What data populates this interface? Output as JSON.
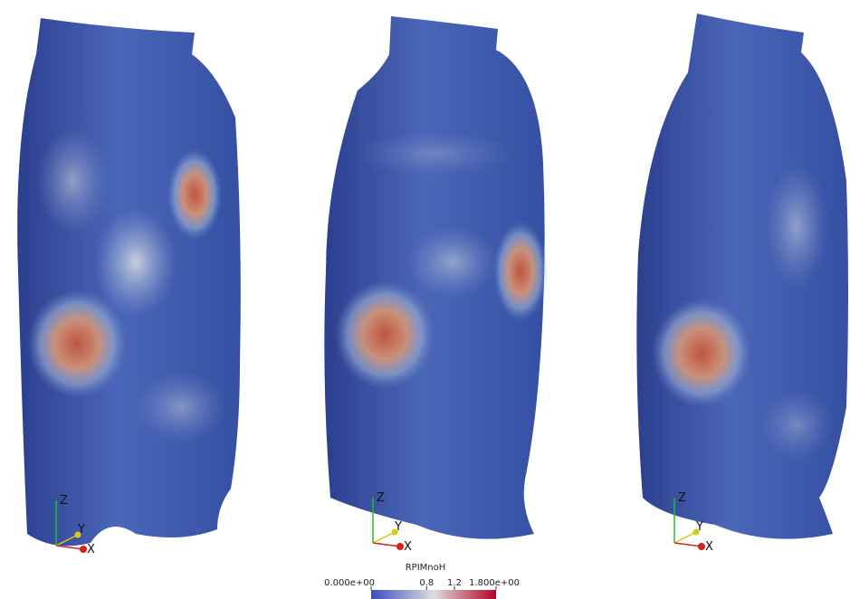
{
  "panels": [
    {
      "axes": {
        "z": "Z",
        "y": "Y",
        "x": "X"
      }
    },
    {
      "axes": {
        "z": "Z",
        "y": "Y",
        "x": "X"
      }
    },
    {
      "axes": {
        "z": "Z",
        "y": "Y",
        "x": "X"
      }
    }
  ],
  "colorbar": {
    "title": "RPIMnoH",
    "range": [
      0,
      1.8
    ],
    "ticks": [
      {
        "value": 0,
        "label": "0.000e+00"
      },
      {
        "value": 0.8,
        "label": "0.8"
      },
      {
        "value": 1.2,
        "label": "1.2"
      },
      {
        "value": 1.8,
        "label": "1.800e+00"
      }
    ]
  }
}
